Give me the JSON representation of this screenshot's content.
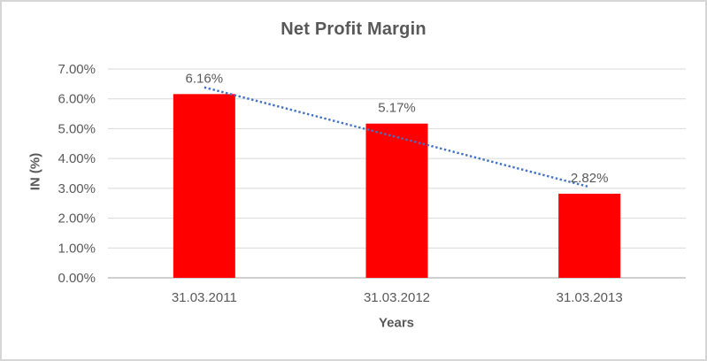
{
  "window": {
    "background": "#FFFFFF",
    "border_color": "#D6D6D6"
  },
  "chart_data": {
    "type": "bar",
    "title": "Net Profit Margin",
    "xlabel": "Years",
    "ylabel": "IN (%)",
    "categories": [
      "31.03.2011",
      "31.03.2012",
      "31.03.2013"
    ],
    "values": [
      6.16,
      5.17,
      2.82
    ],
    "value_labels": [
      "6.16%",
      "5.17%",
      "2.82%"
    ],
    "ylim": [
      0,
      7
    ],
    "ytick_step": 1,
    "ytick_labels": [
      "0.00%",
      "1.00%",
      "2.00%",
      "3.00%",
      "4.00%",
      "5.00%",
      "6.00%",
      "7.00%"
    ],
    "grid": true,
    "legend": "none",
    "bar_color": "#FF0000",
    "text_color": "#595959",
    "gridline_color": "#D9D9D9",
    "axis_line_color": "#C0C0C0",
    "trendline": {
      "type": "linear",
      "style": "dotted",
      "color": "#4472C4"
    }
  }
}
